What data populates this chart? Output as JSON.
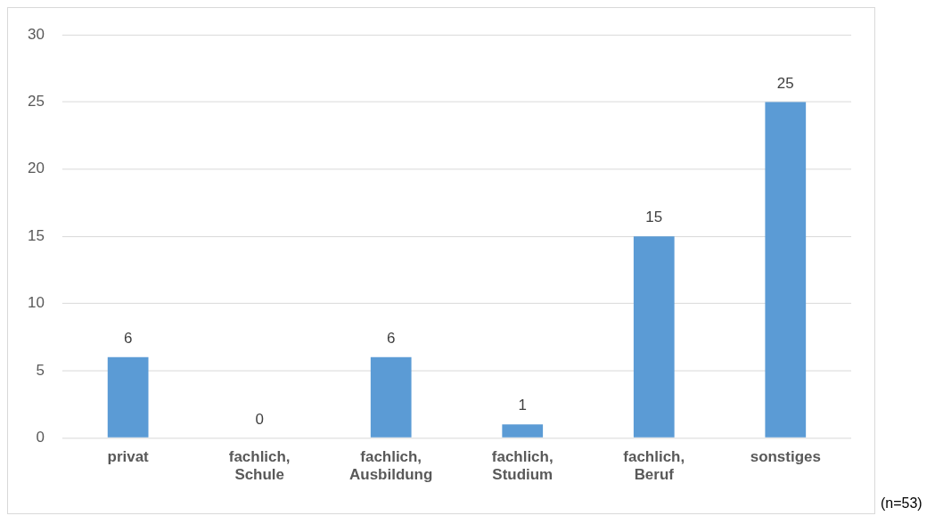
{
  "chart_data": {
    "type": "bar",
    "categories": [
      "privat",
      "fachlich, Schule",
      "fachlich, Ausbildung",
      "fachlich, Studium",
      "fachlich, Beruf",
      "sonstiges"
    ],
    "values": [
      6,
      0,
      6,
      1,
      15,
      25
    ],
    "color": "#5b9bd5",
    "ylim": [
      0,
      30
    ],
    "yticks": [
      0,
      5,
      10,
      15,
      20,
      25,
      30
    ],
    "grid": "y",
    "data_labels": true,
    "annotations": [
      "(n=53)"
    ]
  }
}
